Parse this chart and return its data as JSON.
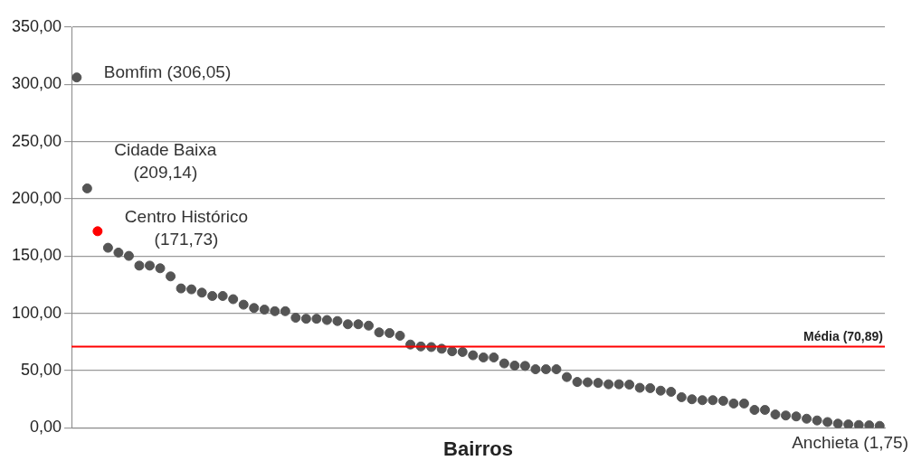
{
  "chart_data": {
    "type": "scatter",
    "xlabel": "Bairros",
    "categories": [
      null,
      null,
      null,
      null,
      null,
      null,
      null,
      null,
      null,
      null,
      null,
      null,
      null,
      null,
      null,
      null,
      null,
      null,
      null,
      null,
      null,
      null,
      null,
      null,
      null,
      null,
      null,
      null,
      null,
      null,
      null,
      null,
      null,
      null,
      null,
      null,
      null,
      null,
      null,
      null,
      null,
      null,
      null,
      null,
      null,
      null,
      null,
      null,
      null,
      null,
      null,
      null,
      null,
      null,
      null,
      null,
      null,
      null,
      null,
      null,
      null,
      null,
      null,
      null,
      null,
      null,
      null,
      null,
      null,
      null,
      null,
      null,
      null,
      null,
      null,
      null,
      null,
      null
    ],
    "values": [
      306.05,
      209.14,
      171.73,
      157.3,
      153.1,
      150.2,
      141.7,
      141.7,
      139.4,
      132.3,
      121.8,
      121.0,
      118.1,
      115.2,
      115.2,
      112.4,
      107.6,
      104.7,
      103.3,
      101.9,
      101.9,
      96.2,
      95.3,
      95.3,
      94.2,
      93.3,
      90.5,
      90.5,
      89.3,
      83.4,
      82.8,
      80.5,
      72.8,
      71.1,
      70.6,
      69.1,
      66.9,
      66.3,
      63.4,
      61.5,
      61.5,
      56.3,
      54.4,
      54.1,
      51.2,
      51.2,
      51.2,
      44.4,
      40.1,
      39.8,
      39.3,
      38.1,
      38.1,
      37.8,
      35.0,
      34.7,
      32.5,
      31.5,
      26.8,
      25.0,
      24.2,
      24.2,
      23.6,
      21.3,
      21.3,
      15.7,
      15.7,
      11.7,
      10.8,
      10.0,
      8.0,
      6.5,
      5.1,
      3.7,
      3.0,
      2.5,
      2.2,
      1.75
    ],
    "colors": [
      "#555555",
      "#555555",
      "#ff0000",
      "#555555",
      "#555555",
      "#555555",
      "#555555",
      "#555555",
      "#555555",
      "#555555",
      "#555555",
      "#555555",
      "#555555",
      "#555555",
      "#555555",
      "#555555",
      "#555555",
      "#555555",
      "#555555",
      "#555555",
      "#555555",
      "#555555",
      "#555555",
      "#555555",
      "#555555",
      "#555555",
      "#555555",
      "#555555",
      "#555555",
      "#555555",
      "#555555",
      "#555555",
      "#555555",
      "#555555",
      "#555555",
      "#555555",
      "#555555",
      "#555555",
      "#555555",
      "#555555",
      "#555555",
      "#555555",
      "#555555",
      "#555555",
      "#555555",
      "#555555",
      "#555555",
      "#555555",
      "#555555",
      "#555555",
      "#555555",
      "#555555",
      "#555555",
      "#555555",
      "#555555",
      "#555555",
      "#555555",
      "#555555",
      "#555555",
      "#555555",
      "#555555",
      "#555555",
      "#555555",
      "#555555",
      "#555555",
      "#555555",
      "#555555",
      "#555555",
      "#555555",
      "#555555",
      "#555555",
      "#555555",
      "#555555",
      "#555555",
      "#555555",
      "#555555",
      "#555555",
      "#555555"
    ],
    "value_labels": [
      "Bomfim (306,05)",
      "Cidade Baixa (209,14)",
      "Centro Histórico (171,73)",
      null,
      null,
      null,
      null,
      null,
      null,
      null,
      null,
      null,
      null,
      null,
      null,
      null,
      null,
      null,
      null,
      null,
      null,
      null,
      null,
      null,
      null,
      null,
      null,
      null,
      null,
      null,
      null,
      null,
      null,
      null,
      null,
      null,
      null,
      null,
      null,
      null,
      null,
      null,
      null,
      null,
      null,
      null,
      null,
      null,
      null,
      null,
      null,
      null,
      null,
      null,
      null,
      null,
      null,
      null,
      null,
      null,
      null,
      null,
      null,
      null,
      null,
      null,
      null,
      null,
      null,
      null,
      null,
      null,
      null,
      null,
      null,
      null,
      null,
      "Anchieta (1,75)"
    ],
    "ylim": [
      0,
      350
    ],
    "yticks": [
      {
        "value": 0,
        "label": "0,00"
      },
      {
        "value": 50,
        "label": "50,00"
      },
      {
        "value": 100,
        "label": "100,00"
      },
      {
        "value": 150,
        "label": "150,00"
      },
      {
        "value": 200,
        "label": "200,00"
      },
      {
        "value": 250,
        "label": "250,00"
      },
      {
        "value": 300,
        "label": "300,00"
      },
      {
        "value": 350,
        "label": "350,00"
      }
    ],
    "grid": "y",
    "marker": "circle",
    "legend": false,
    "ref_lines": [
      {
        "axis": "y",
        "value": 70.89,
        "label": "Média (70,89)",
        "color": "#ff0000"
      }
    ]
  }
}
